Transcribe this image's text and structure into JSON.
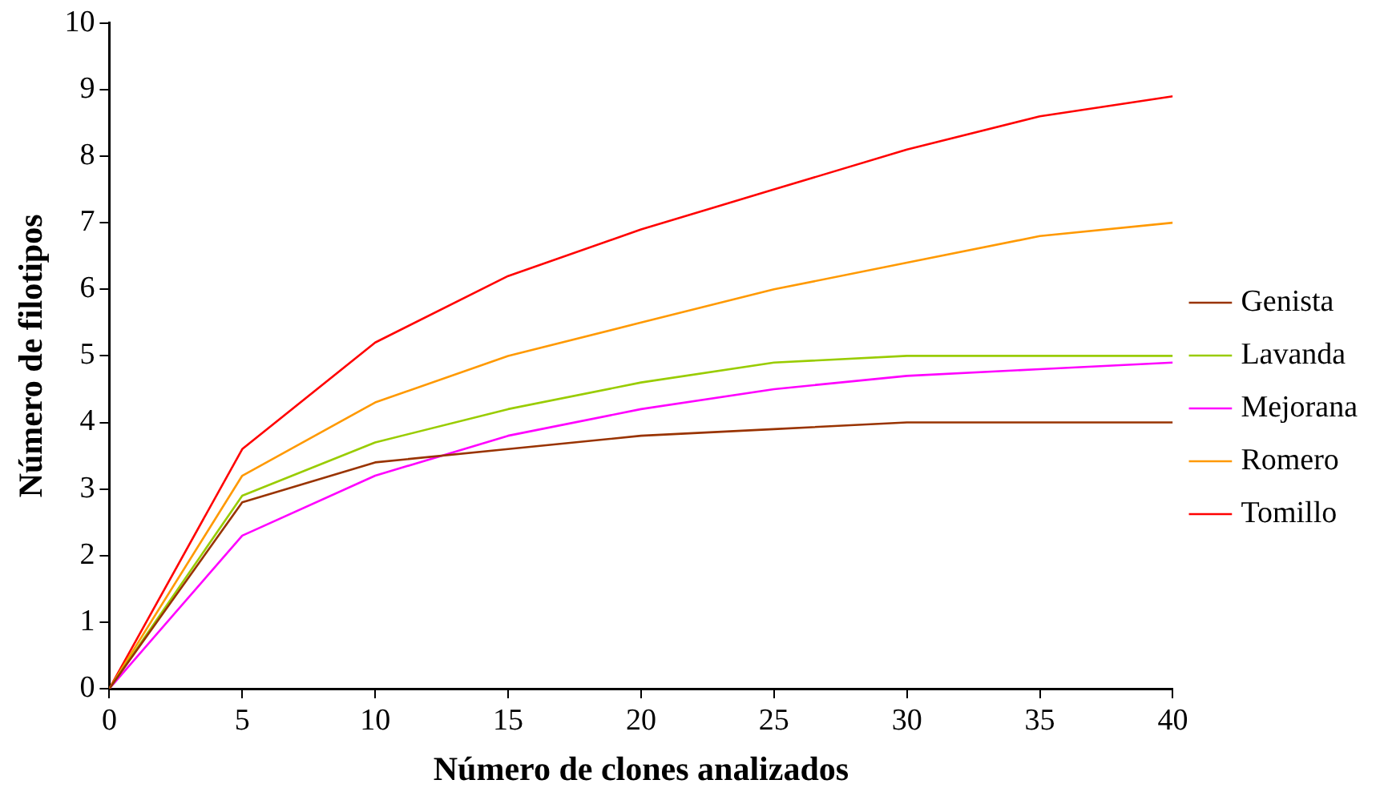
{
  "chart_data": {
    "type": "line",
    "xlabel": "Número de clones analizados",
    "ylabel": "Número de filotipos",
    "x": [
      0,
      5,
      10,
      15,
      20,
      25,
      30,
      35,
      40
    ],
    "series": [
      {
        "name": "Genista",
        "color": "#993300",
        "values": [
          0,
          2.8,
          3.4,
          3.6,
          3.8,
          3.9,
          4,
          4,
          4
        ]
      },
      {
        "name": "Lavanda",
        "color": "#99cc00",
        "values": [
          0,
          2.9,
          3.7,
          4.2,
          4.6,
          4.9,
          5,
          5,
          5
        ]
      },
      {
        "name": "Mejorana",
        "color": "#ff00ff",
        "values": [
          0,
          2.3,
          3.2,
          3.8,
          4.2,
          4.5,
          4.7,
          4.8,
          4.9
        ]
      },
      {
        "name": "Romero",
        "color": "#ff9900",
        "values": [
          0,
          3.2,
          4.3,
          5,
          5.5,
          6,
          6.4,
          6.8,
          7
        ]
      },
      {
        "name": "Tomillo",
        "color": "#ff0000",
        "values": [
          0,
          3.6,
          5.2,
          6.2,
          6.9,
          7.5,
          8.1,
          8.6,
          8.9
        ]
      }
    ],
    "xlim": [
      0,
      40
    ],
    "xticks": [
      0,
      5,
      10,
      15,
      20,
      25,
      30,
      35,
      40
    ],
    "ylim": [
      0,
      10
    ],
    "yticks": [
      0,
      1,
      2,
      3,
      4,
      5,
      6,
      7,
      8,
      9,
      10
    ],
    "grid": false,
    "legend": "right",
    "marker": "none",
    "line_style": "solid"
  }
}
